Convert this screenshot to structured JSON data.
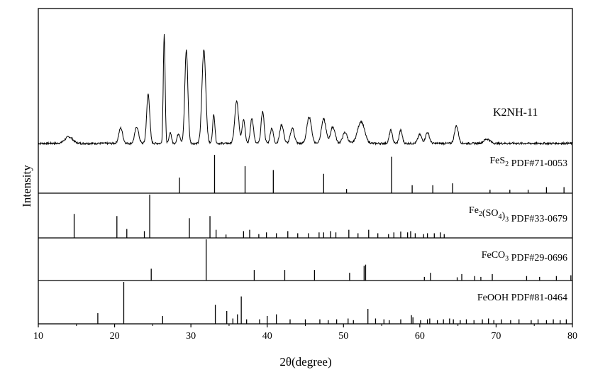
{
  "chart_data": {
    "type": "line",
    "xlabel": "2θ(degree)",
    "ylabel": "Intensity",
    "xlim": [
      10,
      80
    ],
    "x_ticks": [
      10,
      20,
      30,
      40,
      50,
      60,
      70,
      80
    ],
    "grid": false,
    "legend": "none",
    "colors": {
      "line": "#000000",
      "background": "#ffffff"
    },
    "sample": {
      "name": "K2NH-11",
      "baseline": 0.02,
      "peaks": [
        {
          "x": 14.0,
          "y": 0.06,
          "w": 0.5
        },
        {
          "x": 20.8,
          "y": 0.14,
          "w": 0.25
        },
        {
          "x": 22.9,
          "y": 0.15,
          "w": 0.25
        },
        {
          "x": 24.4,
          "y": 0.45,
          "w": 0.2
        },
        {
          "x": 26.5,
          "y": 1.0,
          "w": 0.12
        },
        {
          "x": 27.3,
          "y": 0.1,
          "w": 0.15
        },
        {
          "x": 28.4,
          "y": 0.09,
          "w": 0.2
        },
        {
          "x": 29.4,
          "y": 0.85,
          "w": 0.2
        },
        {
          "x": 31.7,
          "y": 0.85,
          "w": 0.25
        },
        {
          "x": 33.0,
          "y": 0.26,
          "w": 0.15
        },
        {
          "x": 36.0,
          "y": 0.38,
          "w": 0.25
        },
        {
          "x": 36.9,
          "y": 0.22,
          "w": 0.2
        },
        {
          "x": 38.0,
          "y": 0.23,
          "w": 0.2
        },
        {
          "x": 39.4,
          "y": 0.29,
          "w": 0.2
        },
        {
          "x": 40.6,
          "y": 0.14,
          "w": 0.2
        },
        {
          "x": 41.9,
          "y": 0.17,
          "w": 0.25
        },
        {
          "x": 43.3,
          "y": 0.14,
          "w": 0.25
        },
        {
          "x": 45.5,
          "y": 0.24,
          "w": 0.3
        },
        {
          "x": 47.4,
          "y": 0.22,
          "w": 0.3
        },
        {
          "x": 48.6,
          "y": 0.15,
          "w": 0.3
        },
        {
          "x": 50.2,
          "y": 0.1,
          "w": 0.3
        },
        {
          "x": 52.3,
          "y": 0.2,
          "w": 0.45
        },
        {
          "x": 56.2,
          "y": 0.12,
          "w": 0.2
        },
        {
          "x": 57.5,
          "y": 0.12,
          "w": 0.2
        },
        {
          "x": 60.0,
          "y": 0.08,
          "w": 0.25
        },
        {
          "x": 61.0,
          "y": 0.1,
          "w": 0.25
        },
        {
          "x": 64.8,
          "y": 0.16,
          "w": 0.25
        },
        {
          "x": 68.8,
          "y": 0.04,
          "w": 0.4
        }
      ]
    },
    "references": [
      {
        "label": "FeS₂ PDF#71-0053",
        "lines": [
          [
            28.5,
            0.4
          ],
          [
            33.1,
            1.0
          ],
          [
            37.1,
            0.7
          ],
          [
            40.8,
            0.6
          ],
          [
            47.4,
            0.5
          ],
          [
            50.4,
            0.1
          ],
          [
            56.3,
            0.95
          ],
          [
            59.0,
            0.2
          ],
          [
            61.7,
            0.2
          ],
          [
            64.3,
            0.25
          ],
          [
            69.2,
            0.08
          ],
          [
            71.8,
            0.08
          ],
          [
            74.2,
            0.08
          ],
          [
            76.6,
            0.15
          ],
          [
            78.9,
            0.15
          ]
        ]
      },
      {
        "label": "Fe₂(SO₄)₃ PDF#33-0679",
        "lines": [
          [
            14.7,
            0.55
          ],
          [
            20.3,
            0.5
          ],
          [
            21.6,
            0.2
          ],
          [
            23.9,
            0.15
          ],
          [
            24.6,
            1.0
          ],
          [
            29.8,
            0.45
          ],
          [
            32.5,
            0.5
          ],
          [
            33.3,
            0.18
          ],
          [
            34.6,
            0.07
          ],
          [
            36.9,
            0.15
          ],
          [
            37.7,
            0.18
          ],
          [
            38.9,
            0.08
          ],
          [
            39.9,
            0.12
          ],
          [
            41.2,
            0.1
          ],
          [
            42.7,
            0.15
          ],
          [
            44.0,
            0.1
          ],
          [
            45.4,
            0.1
          ],
          [
            46.8,
            0.12
          ],
          [
            47.4,
            0.12
          ],
          [
            48.3,
            0.15
          ],
          [
            49.0,
            0.12
          ],
          [
            50.7,
            0.18
          ],
          [
            51.9,
            0.1
          ],
          [
            53.3,
            0.18
          ],
          [
            54.5,
            0.1
          ],
          [
            55.9,
            0.08
          ],
          [
            56.6,
            0.12
          ],
          [
            57.5,
            0.14
          ],
          [
            58.4,
            0.12
          ],
          [
            58.8,
            0.15
          ],
          [
            59.4,
            0.1
          ],
          [
            60.5,
            0.08
          ],
          [
            61.0,
            0.1
          ],
          [
            61.9,
            0.1
          ],
          [
            62.7,
            0.12
          ],
          [
            63.2,
            0.08
          ]
        ]
      },
      {
        "label": "FeCO₃ PDF#29-0696",
        "lines": [
          [
            24.8,
            0.28
          ],
          [
            32.0,
            1.0
          ],
          [
            38.3,
            0.25
          ],
          [
            42.3,
            0.25
          ],
          [
            46.2,
            0.25
          ],
          [
            50.8,
            0.18
          ],
          [
            52.7,
            0.35
          ],
          [
            52.9,
            0.38
          ],
          [
            61.4,
            0.18
          ],
          [
            60.6,
            0.08
          ],
          [
            64.9,
            0.07
          ],
          [
            65.5,
            0.15
          ],
          [
            67.2,
            0.1
          ],
          [
            68.0,
            0.08
          ],
          [
            69.5,
            0.15
          ],
          [
            74.0,
            0.1
          ],
          [
            75.7,
            0.08
          ],
          [
            77.9,
            0.1
          ],
          [
            79.8,
            0.12
          ]
        ]
      },
      {
        "label": "FeOOH PDF#81-0464",
        "lines": [
          [
            17.8,
            0.25
          ],
          [
            21.2,
            1.0
          ],
          [
            26.3,
            0.18
          ],
          [
            33.2,
            0.45
          ],
          [
            34.7,
            0.3
          ],
          [
            35.5,
            0.12
          ],
          [
            36.1,
            0.22
          ],
          [
            36.6,
            0.65
          ],
          [
            37.3,
            0.1
          ],
          [
            39.0,
            0.1
          ],
          [
            40.0,
            0.18
          ],
          [
            41.2,
            0.22
          ],
          [
            43.0,
            0.1
          ],
          [
            45.0,
            0.1
          ],
          [
            46.9,
            0.1
          ],
          [
            48.0,
            0.08
          ],
          [
            49.1,
            0.1
          ],
          [
            50.6,
            0.12
          ],
          [
            51.3,
            0.08
          ],
          [
            53.2,
            0.35
          ],
          [
            54.2,
            0.12
          ],
          [
            55.3,
            0.1
          ],
          [
            56.0,
            0.08
          ],
          [
            57.5,
            0.1
          ],
          [
            58.9,
            0.2
          ],
          [
            59.1,
            0.15
          ],
          [
            60.1,
            0.08
          ],
          [
            61.0,
            0.1
          ],
          [
            61.3,
            0.12
          ],
          [
            62.3,
            0.08
          ],
          [
            63.1,
            0.1
          ],
          [
            63.9,
            0.12
          ],
          [
            64.4,
            0.1
          ],
          [
            65.3,
            0.08
          ],
          [
            66.1,
            0.1
          ],
          [
            67.1,
            0.08
          ],
          [
            68.2,
            0.1
          ],
          [
            69.0,
            0.12
          ],
          [
            69.7,
            0.08
          ],
          [
            70.7,
            0.1
          ],
          [
            71.9,
            0.08
          ],
          [
            73.0,
            0.1
          ],
          [
            74.6,
            0.08
          ],
          [
            75.5,
            0.1
          ],
          [
            76.6,
            0.08
          ],
          [
            77.5,
            0.1
          ],
          [
            78.4,
            0.08
          ],
          [
            79.2,
            0.1
          ]
        ]
      }
    ]
  }
}
